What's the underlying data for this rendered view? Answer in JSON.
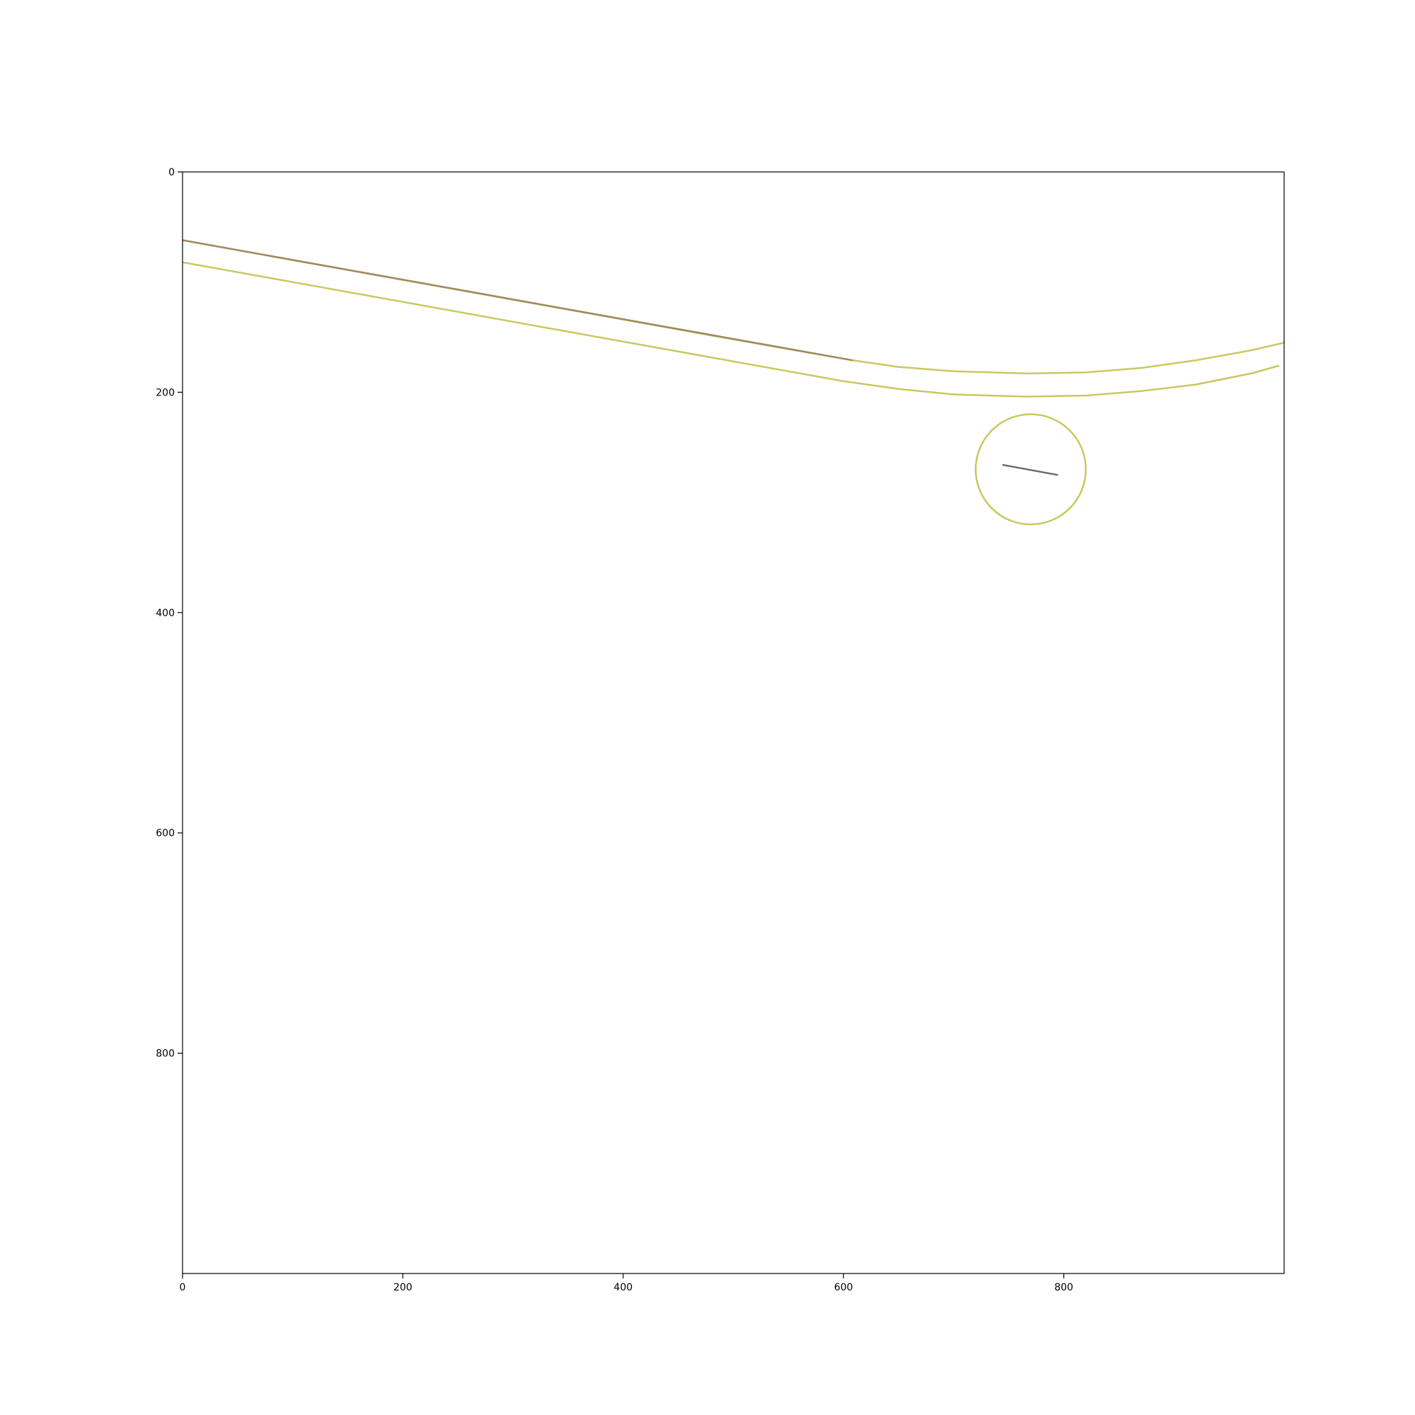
{
  "chart_data": {
    "type": "line",
    "title": "",
    "xlabel": "",
    "ylabel": "",
    "xlim": [
      0,
      1000
    ],
    "ylim": [
      1000,
      0
    ],
    "y_inverted": true,
    "grid": false,
    "x_ticks": [
      0,
      200,
      400,
      600,
      800
    ],
    "y_ticks": [
      0,
      200,
      400,
      600,
      800
    ],
    "x_tick_labels": [
      "0",
      "200",
      "400",
      "600",
      "800"
    ],
    "y_tick_labels": [
      "0",
      "200",
      "400",
      "600",
      "800"
    ],
    "series": [
      {
        "color": "#c8c860",
        "points": [
          [
            0,
            62
          ],
          [
            100,
            80
          ],
          [
            200,
            98
          ],
          [
            300,
            116
          ],
          [
            400,
            134
          ],
          [
            500,
            152
          ],
          [
            608,
            171
          ],
          [
            650,
            177
          ],
          [
            700,
            181
          ],
          [
            766,
            183
          ],
          [
            820,
            182
          ],
          [
            870,
            178
          ],
          [
            920,
            171
          ],
          [
            970,
            162
          ],
          [
            1000,
            155
          ]
        ]
      },
      {
        "color": "#c8c860",
        "points": [
          [
            0,
            82
          ],
          [
            100,
            100
          ],
          [
            200,
            118
          ],
          [
            300,
            136
          ],
          [
            400,
            154
          ],
          [
            500,
            172
          ],
          [
            600,
            190
          ],
          [
            650,
            197
          ],
          [
            700,
            202
          ],
          [
            766,
            204
          ],
          [
            820,
            203
          ],
          [
            870,
            199
          ],
          [
            920,
            193
          ],
          [
            970,
            183
          ],
          [
            995,
            176
          ]
        ]
      },
      {
        "color": "#a08a60",
        "points": [
          [
            0,
            62
          ],
          [
            608,
            171
          ]
        ]
      },
      {
        "color": "#6b6b6b",
        "points": [
          [
            745,
            266
          ],
          [
            794,
            275
          ]
        ]
      }
    ],
    "shapes": [
      {
        "type": "circle",
        "center": [
          770,
          270
        ],
        "radius": 50,
        "color": "#c8c860"
      }
    ]
  }
}
